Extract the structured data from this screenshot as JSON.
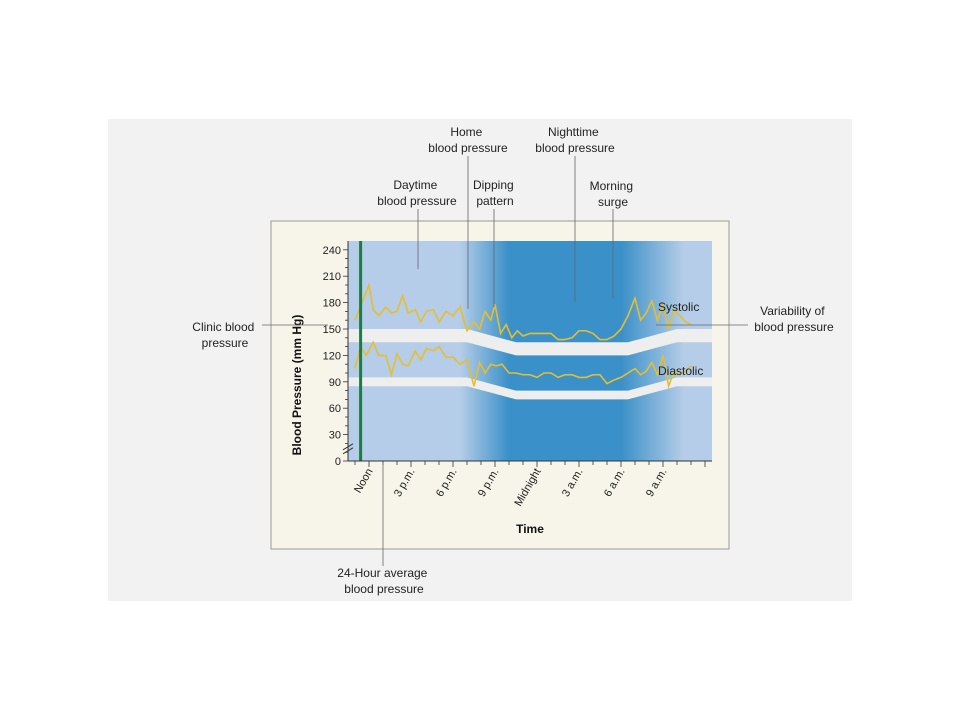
{
  "chart_data": {
    "type": "line",
    "xlabel": "Time",
    "ylabel": "Blood Pressure (mm Hg)",
    "ylim": [
      0,
      250
    ],
    "y_ticks": [
      0,
      30,
      60,
      90,
      120,
      150,
      180,
      210,
      240
    ],
    "y_axis_break": true,
    "x_hours_range": [
      -1.5,
      24.5
    ],
    "x_tick_labels": [
      {
        "hour": 0,
        "label": "Noon"
      },
      {
        "hour": 3,
        "label": "3 p.m."
      },
      {
        "hour": 6,
        "label": "6 p.m."
      },
      {
        "hour": 9,
        "label": "9 p.m."
      },
      {
        "hour": 12,
        "label": "Midnight"
      },
      {
        "hour": 15,
        "label": "3 a.m."
      },
      {
        "hour": 18,
        "label": "6 a.m."
      },
      {
        "hour": 21,
        "label": "9 a.m."
      }
    ],
    "series": [
      {
        "name": "Systolic",
        "hours": [
          -1,
          -0.5,
          0,
          0.3,
          0.7,
          1.2,
          1.6,
          2,
          2.4,
          2.8,
          3.3,
          3.7,
          4.1,
          4.6,
          5,
          5.5,
          6,
          6.5,
          7,
          7.5,
          7.9,
          8.3,
          8.7,
          9,
          9.4,
          9.8,
          10.2,
          10.6,
          11,
          11.5,
          12,
          12.5,
          13,
          13.5,
          14,
          14.5,
          15,
          15.5,
          16,
          16.5,
          17,
          17.5,
          18,
          18.5,
          19,
          19.4,
          19.8,
          20.2,
          20.6,
          21,
          21.4,
          21.8,
          22.2,
          22.6,
          23
        ],
        "values": [
          160,
          180,
          200,
          172,
          165,
          175,
          168,
          170,
          188,
          168,
          172,
          158,
          170,
          172,
          158,
          170,
          165,
          175,
          148,
          158,
          150,
          170,
          160,
          178,
          145,
          155,
          140,
          148,
          142,
          145,
          145,
          145,
          145,
          138,
          138,
          140,
          148,
          148,
          145,
          138,
          138,
          142,
          150,
          165,
          185,
          160,
          168,
          182,
          160,
          178,
          150,
          172,
          165,
          158,
          155
        ]
      },
      {
        "name": "Diastolic",
        "hours": [
          -1,
          -0.6,
          -0.2,
          0.3,
          0.7,
          1.2,
          1.6,
          2,
          2.4,
          2.8,
          3.3,
          3.7,
          4.1,
          4.6,
          5,
          5.5,
          6,
          6.5,
          7,
          7.5,
          7.9,
          8.3,
          8.7,
          9.1,
          9.5,
          10,
          10.5,
          11,
          11.5,
          12,
          12.5,
          13,
          13.5,
          14,
          14.5,
          15,
          15.5,
          16,
          16.5,
          17,
          17.5,
          18,
          18.5,
          19,
          19.4,
          19.8,
          20.2,
          20.6,
          21,
          21.4,
          21.8,
          22.2,
          22.6,
          23
        ],
        "values": [
          105,
          130,
          120,
          135,
          120,
          120,
          98,
          122,
          110,
          108,
          125,
          115,
          128,
          125,
          130,
          118,
          118,
          110,
          115,
          85,
          112,
          100,
          110,
          108,
          110,
          100,
          100,
          98,
          98,
          95,
          100,
          100,
          95,
          98,
          98,
          95,
          95,
          98,
          98,
          88,
          92,
          95,
          100,
          105,
          98,
          102,
          112,
          98,
          120,
          85,
          102,
          98,
          102,
          108
        ]
      }
    ],
    "bands": [
      {
        "name": "Systolic normal range",
        "hours": [
          -1.5,
          7,
          10.5,
          18.5,
          22,
          24.5
        ],
        "lower": [
          135,
          135,
          120,
          120,
          135,
          135
        ],
        "upper": [
          150,
          150,
          135,
          135,
          150,
          150
        ]
      },
      {
        "name": "Diastolic normal range",
        "hours": [
          -1.5,
          7,
          10.5,
          18.5,
          22,
          24.5
        ],
        "lower": [
          85,
          85,
          70,
          70,
          85,
          85
        ],
        "upper": [
          95,
          95,
          80,
          80,
          95,
          95
        ]
      }
    ],
    "clinic_bp_reading_hour": -0.6,
    "night_shading_hours": [
      6.5,
      22.5
    ]
  },
  "annotations": {
    "home_bp": [
      "Home",
      "blood pressure"
    ],
    "nighttime_bp": [
      "Nighttime",
      "blood pressure"
    ],
    "daytime_bp": [
      "Daytime",
      "blood pressure"
    ],
    "dipping_pattern": [
      "Dipping",
      "pattern"
    ],
    "morning_surge": [
      "Morning",
      "surge"
    ],
    "clinic_bp": [
      "Clinic blood",
      "pressure"
    ],
    "variability": [
      "Variability of",
      "blood pressure"
    ],
    "avg_24h": [
      "24-Hour average",
      "blood pressure"
    ],
    "systolic_label": "Systolic",
    "diastolic_label": "Diastolic"
  },
  "colors": {
    "figure_bg": "#f2f2f2",
    "panel_bg": "#f7f5e9",
    "day_blue": "#b5cde8",
    "night_blue": "#3a90c8",
    "band": "#eeeeee",
    "trace": "#e6be2e",
    "clinic_marker": "#1e7a46"
  }
}
